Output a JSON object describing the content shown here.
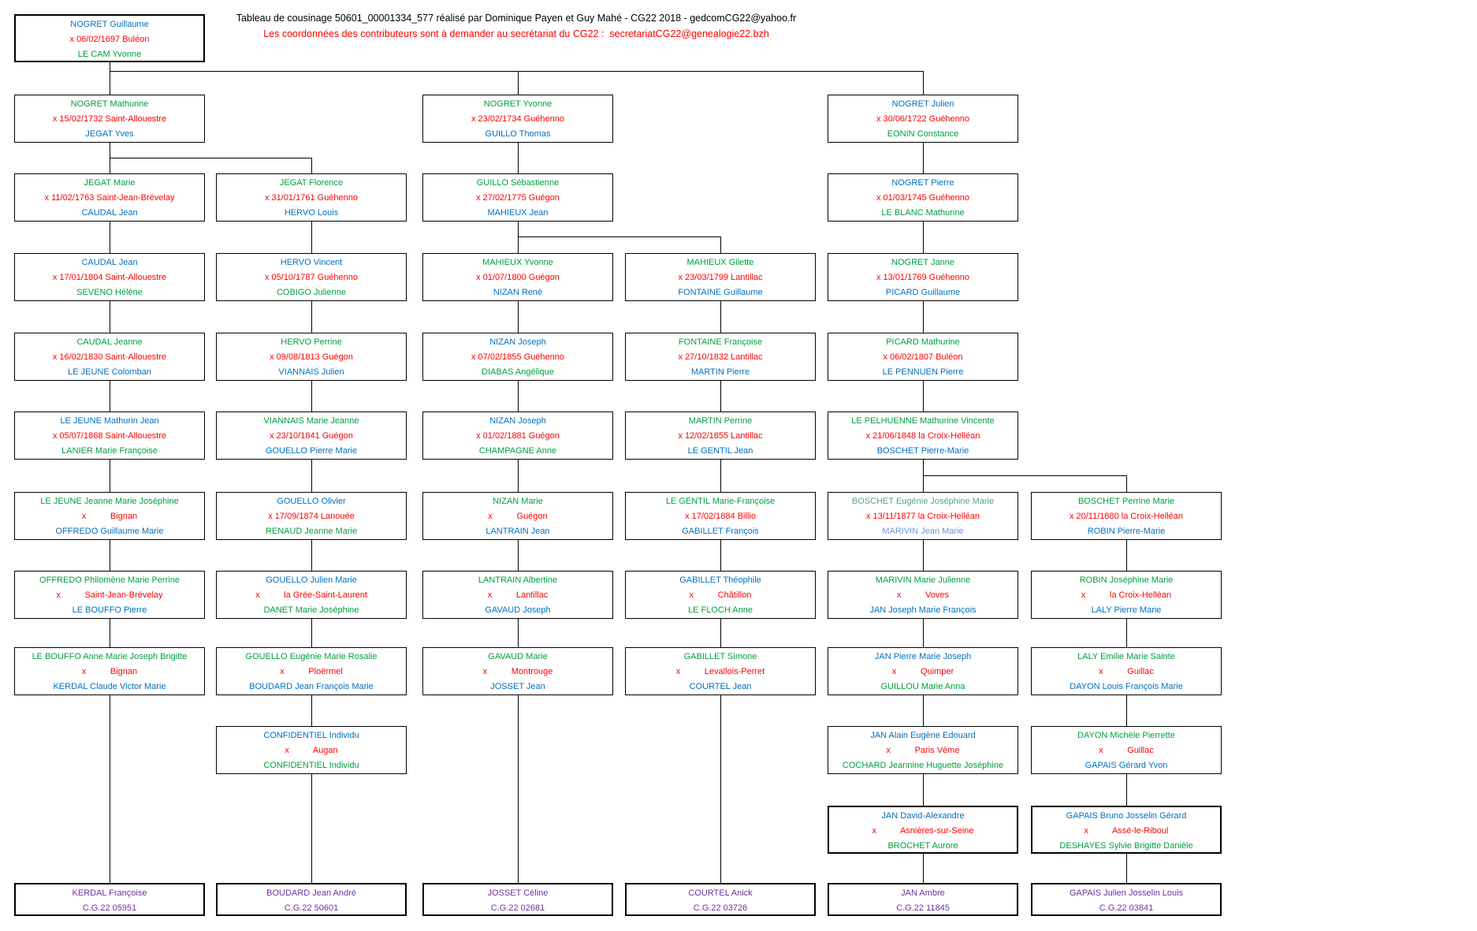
{
  "header": {
    "line1": "Tableau de cousinage 50601_00001334_577 réalisé par Dominique Payen et Guy Mahé - CG22 2018 - gedcomCG22@yahoo.fr",
    "line2": "Les coordonnées des contributeurs sont à demander au secrétariat du CG22 :  secretariatCG22@genealogie22.bzh"
  },
  "palette": {
    "blue": "#0070C0",
    "green": "#00A03C",
    "lightgreen": "#52A777",
    "lightblue": "#6E96DB",
    "red": "#FF0000",
    "purple": "#7030A0",
    "black": "#000000"
  },
  "boxes": [
    {
      "row": 1,
      "col": 1,
      "lines": [
        {
          "t": "NOGRET Guillaume",
          "c": "blue"
        },
        {
          "t": "x 06/02/1697 Buléon",
          "c": "red"
        },
        {
          "t": "LE CAM Yvonne",
          "c": "green"
        }
      ]
    },
    {
      "row": 2,
      "col": 1,
      "lines": [
        {
          "t": "NOGRET Mathurine",
          "c": "green"
        },
        {
          "t": "x 15/02/1732 Saint-Allouestre",
          "c": "red"
        },
        {
          "t": "JEGAT Yves",
          "c": "blue"
        }
      ]
    },
    {
      "row": 2,
      "col": 3,
      "lines": [
        {
          "t": "NOGRET Yvonne",
          "c": "green"
        },
        {
          "t": "x 23/02/1734 Guéhenno",
          "c": "red"
        },
        {
          "t": "GUILLO Thomas",
          "c": "blue"
        }
      ]
    },
    {
      "row": 2,
      "col": 5,
      "lines": [
        {
          "t": "NOGRET Julien",
          "c": "blue"
        },
        {
          "t": "x 30/06/1722 Guéhenno",
          "c": "red"
        },
        {
          "t": "EONIN Constance",
          "c": "green"
        }
      ]
    },
    {
      "row": 3,
      "col": 1,
      "lines": [
        {
          "t": "JEGAT Marie",
          "c": "green"
        },
        {
          "t": "x 11/02/1763 Saint-Jean-Brévelay",
          "c": "red"
        },
        {
          "t": "CAUDAL Jean",
          "c": "blue"
        }
      ]
    },
    {
      "row": 3,
      "col": 2,
      "lines": [
        {
          "t": "JEGAT Florence",
          "c": "green"
        },
        {
          "t": "x 31/01/1761 Guéhenno",
          "c": "red"
        },
        {
          "t": "HERVO Louis",
          "c": "blue"
        }
      ]
    },
    {
      "row": 3,
      "col": 3,
      "lines": [
        {
          "t": "GUILLO Sébastienne",
          "c": "green"
        },
        {
          "t": "x 27/02/1775 Guégon",
          "c": "red"
        },
        {
          "t": "MAHIEUX Jean",
          "c": "blue"
        }
      ]
    },
    {
      "row": 3,
      "col": 5,
      "lines": [
        {
          "t": "NOGRET Pierre",
          "c": "blue"
        },
        {
          "t": "x 01/03/1745 Guéhenno",
          "c": "red"
        },
        {
          "t": "LE BLANC Mathurine",
          "c": "green"
        }
      ]
    },
    {
      "row": 4,
      "col": 1,
      "lines": [
        {
          "t": "CAUDAL Jean",
          "c": "blue"
        },
        {
          "t": "x 17/01/1804 Saint-Allouestre",
          "c": "red"
        },
        {
          "t": "SEVENO Hélène",
          "c": "green"
        }
      ]
    },
    {
      "row": 4,
      "col": 2,
      "lines": [
        {
          "t": "HERVO Vincent",
          "c": "blue"
        },
        {
          "t": "x 05/10/1787 Guéhenno",
          "c": "red"
        },
        {
          "t": "COBIGO Julienne",
          "c": "green"
        }
      ]
    },
    {
      "row": 4,
      "col": 3,
      "lines": [
        {
          "t": "MAHIEUX Yvonne",
          "c": "green"
        },
        {
          "t": "x 01/07/1800 Guégon",
          "c": "red"
        },
        {
          "t": "NIZAN René",
          "c": "blue"
        }
      ]
    },
    {
      "row": 4,
      "col": 4,
      "lines": [
        {
          "t": "MAHIEUX Gilette",
          "c": "green"
        },
        {
          "t": "x 23/03/1799 Lantillac",
          "c": "red"
        },
        {
          "t": "FONTAINE Guillaume",
          "c": "blue"
        }
      ]
    },
    {
      "row": 4,
      "col": 5,
      "lines": [
        {
          "t": "NOGRET Janne",
          "c": "green"
        },
        {
          "t": "x 13/01/1769 Guéhenno",
          "c": "red"
        },
        {
          "t": "PICARD Guillaume",
          "c": "blue"
        }
      ]
    },
    {
      "row": 5,
      "col": 1,
      "lines": [
        {
          "t": "CAUDAL Jeanne",
          "c": "green"
        },
        {
          "t": "x 16/02/1830 Saint-Allouestre",
          "c": "red"
        },
        {
          "t": "LE JEUNE Colomban",
          "c": "blue"
        }
      ]
    },
    {
      "row": 5,
      "col": 2,
      "lines": [
        {
          "t": "HERVO Perrine",
          "c": "green"
        },
        {
          "t": "x 09/08/1813 Guégon",
          "c": "red"
        },
        {
          "t": "VIANNAIS Julien",
          "c": "blue"
        }
      ]
    },
    {
      "row": 5,
      "col": 3,
      "lines": [
        {
          "t": "NIZAN Joseph",
          "c": "blue"
        },
        {
          "t": "x 07/02/1855 Guéhenno",
          "c": "red"
        },
        {
          "t": "DIABAS Angélique",
          "c": "green"
        }
      ]
    },
    {
      "row": 5,
      "col": 4,
      "lines": [
        {
          "t": "FONTAINE Françoise",
          "c": "green"
        },
        {
          "t": "x 27/10/1832 Lantillac",
          "c": "red"
        },
        {
          "t": "MARTIN Pierre",
          "c": "blue"
        }
      ]
    },
    {
      "row": 5,
      "col": 5,
      "lines": [
        {
          "t": "PICARD Mathurine",
          "c": "green"
        },
        {
          "t": "x 06/02/1807 Buléon",
          "c": "red"
        },
        {
          "t": "LE PENNUEN Pierre",
          "c": "blue"
        }
      ]
    },
    {
      "row": 6,
      "col": 1,
      "lines": [
        {
          "t": "LE JEUNE Mathurin Jean",
          "c": "blue"
        },
        {
          "t": "x 05/07/1868 Saint-Allouestre",
          "c": "red"
        },
        {
          "t": "LANIER Marie Françoise",
          "c": "green"
        }
      ]
    },
    {
      "row": 6,
      "col": 2,
      "lines": [
        {
          "t": "VIANNAIS Marie Jeanne",
          "c": "green"
        },
        {
          "t": "x 23/10/1841 Guégon",
          "c": "red"
        },
        {
          "t": "GOUELLO Pierre Marie",
          "c": "blue"
        }
      ]
    },
    {
      "row": 6,
      "col": 3,
      "lines": [
        {
          "t": "NIZAN Joseph",
          "c": "blue"
        },
        {
          "t": "x 01/02/1881 Guégon",
          "c": "red"
        },
        {
          "t": "CHAMPAGNE Anne",
          "c": "green"
        }
      ]
    },
    {
      "row": 6,
      "col": 4,
      "lines": [
        {
          "t": "MARTIN Perrine",
          "c": "green"
        },
        {
          "t": "x 12/02/1855 Lantillac",
          "c": "red"
        },
        {
          "t": "LE GENTIL Jean",
          "c": "blue"
        }
      ]
    },
    {
      "row": 6,
      "col": 5,
      "lines": [
        {
          "t": "LE PELHUENNE Mathurine Vincente",
          "c": "green"
        },
        {
          "t": "x 21/06/1848 la Croix-Helléan",
          "c": "red"
        },
        {
          "t": "BOSCHET Pierre-Marie",
          "c": "blue"
        }
      ]
    },
    {
      "row": 7,
      "col": 1,
      "lines": [
        {
          "t": "LE JEUNE Jeanne Marie Joséphine",
          "c": "green"
        },
        {
          "t": "x          Bignan",
          "c": "red"
        },
        {
          "t": "OFFREDO Guillaume Marie",
          "c": "blue"
        }
      ]
    },
    {
      "row": 7,
      "col": 2,
      "lines": [
        {
          "t": "GOUELLO Olivier",
          "c": "blue"
        },
        {
          "t": "x 17/09/1874 Lanouée",
          "c": "red"
        },
        {
          "t": "RENAUD Jeanne Marie",
          "c": "green"
        }
      ]
    },
    {
      "row": 7,
      "col": 3,
      "lines": [
        {
          "t": "NIZAN Marie",
          "c": "green"
        },
        {
          "t": "x          Guégon",
          "c": "red"
        },
        {
          "t": "LANTRAIN Jean",
          "c": "blue"
        }
      ]
    },
    {
      "row": 7,
      "col": 4,
      "lines": [
        {
          "t": "LE GENTIL Marie-Françoise",
          "c": "green"
        },
        {
          "t": "x 17/02/1884 Billio",
          "c": "red"
        },
        {
          "t": "GABILLET François",
          "c": "blue"
        }
      ]
    },
    {
      "row": 7,
      "col": 5,
      "lines": [
        {
          "t": "BOSCHET Eugénie Joséphine Marie",
          "c": "lightgreen"
        },
        {
          "t": "x 13/11/1877 la Croix-Helléan",
          "c": "red"
        },
        {
          "t": "MARIVIN Jean Marie",
          "c": "lightblue"
        }
      ]
    },
    {
      "row": 7,
      "col": 6,
      "lines": [
        {
          "t": "BOSCHET Perrine Marie",
          "c": "green"
        },
        {
          "t": "x 20/11/1880 la Croix-Helléan",
          "c": "red"
        },
        {
          "t": "ROBIN Pierre-Marie",
          "c": "blue"
        }
      ]
    },
    {
      "row": 8,
      "col": 1,
      "lines": [
        {
          "t": "OFFREDO Philomène Marie Perrine",
          "c": "green"
        },
        {
          "t": "x          Saint-Jean-Brévelay",
          "c": "red"
        },
        {
          "t": "LE BOUFFO Pierre",
          "c": "blue"
        }
      ]
    },
    {
      "row": 8,
      "col": 2,
      "lines": [
        {
          "t": "GOUELLO Julien Marie",
          "c": "blue"
        },
        {
          "t": "x          la Grée-Saint-Laurent",
          "c": "red"
        },
        {
          "t": "DANET Marie Joséphine",
          "c": "green"
        }
      ]
    },
    {
      "row": 8,
      "col": 3,
      "lines": [
        {
          "t": "LANTRAIN Albertine",
          "c": "green"
        },
        {
          "t": "x          Lantillac",
          "c": "red"
        },
        {
          "t": "GAVAUD Joseph",
          "c": "blue"
        }
      ]
    },
    {
      "row": 8,
      "col": 4,
      "lines": [
        {
          "t": "GABILLET Théophile",
          "c": "blue"
        },
        {
          "t": "x          Châtillon",
          "c": "red"
        },
        {
          "t": "LE FLOCH Anne",
          "c": "green"
        }
      ]
    },
    {
      "row": 8,
      "col": 5,
      "lines": [
        {
          "t": "MARIVIN Marie Julienne",
          "c": "green"
        },
        {
          "t": "x          Voves",
          "c": "red"
        },
        {
          "t": "JAN Joseph Marie François",
          "c": "blue"
        }
      ]
    },
    {
      "row": 8,
      "col": 6,
      "lines": [
        {
          "t": "ROBIN Joséphine Marie",
          "c": "green"
        },
        {
          "t": "x          la Croix-Helléan",
          "c": "red"
        },
        {
          "t": "LALY Pierre Marie",
          "c": "blue"
        }
      ]
    },
    {
      "row": 9,
      "col": 1,
      "lines": [
        {
          "t": "LE BOUFFO Anne Marie Joseph Brigitte",
          "c": "green"
        },
        {
          "t": "x          Bignan",
          "c": "red"
        },
        {
          "t": "KERDAL Claude Victor Marie",
          "c": "blue"
        }
      ]
    },
    {
      "row": 9,
      "col": 2,
      "lines": [
        {
          "t": "GOUELLO Eugénie Marie Rosalie",
          "c": "green"
        },
        {
          "t": "x          Ploërmel",
          "c": "red"
        },
        {
          "t": "BOUDARD Jean François Marie",
          "c": "blue"
        }
      ]
    },
    {
      "row": 9,
      "col": 3,
      "lines": [
        {
          "t": "GAVAUD Marie",
          "c": "green"
        },
        {
          "t": "x          Montrouge",
          "c": "red"
        },
        {
          "t": "JOSSET Jean",
          "c": "blue"
        }
      ]
    },
    {
      "row": 9,
      "col": 4,
      "lines": [
        {
          "t": "GABILLET Simone",
          "c": "green"
        },
        {
          "t": "x          Levallois-Perret",
          "c": "red"
        },
        {
          "t": "COURTEL Jean",
          "c": "blue"
        }
      ]
    },
    {
      "row": 9,
      "col": 5,
      "lines": [
        {
          "t": "JAN Pierre Marie Joseph",
          "c": "blue"
        },
        {
          "t": "x          Quimper",
          "c": "red"
        },
        {
          "t": "GUILLOU Marie Anna",
          "c": "green"
        }
      ]
    },
    {
      "row": 9,
      "col": 6,
      "lines": [
        {
          "t": "LALY Emilie Marie Sainte",
          "c": "green"
        },
        {
          "t": "x          Guillac",
          "c": "red"
        },
        {
          "t": "DAYON Louis François Marie",
          "c": "blue"
        }
      ]
    },
    {
      "row": 10,
      "col": 2,
      "lines": [
        {
          "t": "CONFIDENTIEL Individu",
          "c": "blue"
        },
        {
          "t": "x          Augan",
          "c": "red"
        },
        {
          "t": "CONFIDENTIEL Individu",
          "c": "green"
        }
      ]
    },
    {
      "row": 10,
      "col": 5,
      "lines": [
        {
          "t": "JAN Alain Eugène Edouard",
          "c": "blue"
        },
        {
          "t": "x          Paris Vème",
          "c": "red"
        },
        {
          "t": "COCHARD Jeannine Huguette Joséphine",
          "c": "green"
        }
      ]
    },
    {
      "row": 10,
      "col": 6,
      "lines": [
        {
          "t": "DAYON Michèle Pierrette",
          "c": "green"
        },
        {
          "t": "x          Guillac",
          "c": "red"
        },
        {
          "t": "GAPAIS Gérard Yvon",
          "c": "blue"
        }
      ]
    },
    {
      "row": 11,
      "col": 5,
      "lines": [
        {
          "t": "JAN David-Alexandre",
          "c": "blue"
        },
        {
          "t": "x          Asnières-sur-Seine",
          "c": "red"
        },
        {
          "t": "BROCHET Aurore",
          "c": "green"
        }
      ]
    },
    {
      "row": 11,
      "col": 6,
      "lines": [
        {
          "t": "GAPAIS Bruno Josselin Gérard",
          "c": "blue"
        },
        {
          "t": "x          Assé-le-Riboul",
          "c": "red"
        },
        {
          "t": "DESHAYES Sylvie Brigitte Danièle",
          "c": "green"
        }
      ]
    },
    {
      "row": 12,
      "col": 1,
      "lines": [
        {
          "t": "KERDAL Françoise",
          "c": "purple"
        },
        {
          "t": "C.G.22 05951",
          "c": "purple"
        }
      ]
    },
    {
      "row": 12,
      "col": 2,
      "lines": [
        {
          "t": "BOUDARD Jean André",
          "c": "purple"
        },
        {
          "t": "C.G.22 50601",
          "c": "purple"
        }
      ]
    },
    {
      "row": 12,
      "col": 3,
      "lines": [
        {
          "t": "JOSSET Céline",
          "c": "purple"
        },
        {
          "t": "C.G.22 02681",
          "c": "purple"
        }
      ]
    },
    {
      "row": 12,
      "col": 4,
      "lines": [
        {
          "t": "COURTEL Anick",
          "c": "purple"
        },
        {
          "t": "C.G.22 03726",
          "c": "purple"
        }
      ]
    },
    {
      "row": 12,
      "col": 5,
      "lines": [
        {
          "t": "JAN Ambre",
          "c": "purple"
        },
        {
          "t": "C.G.22 11845",
          "c": "purple"
        }
      ]
    },
    {
      "row": 12,
      "col": 6,
      "lines": [
        {
          "t": "GAPAIS Julien Josselin Louis",
          "c": "purple"
        },
        {
          "t": "C.G.22 03841",
          "c": "purple"
        }
      ]
    }
  ],
  "edges": [
    {
      "from": 0,
      "to": [
        1,
        2,
        3
      ],
      "bus": 90
    },
    {
      "from": 1,
      "to": [
        4,
        5
      ],
      "bus": 200
    },
    {
      "from": 2,
      "to": [
        6
      ]
    },
    {
      "from": 3,
      "to": [
        7
      ]
    },
    {
      "from": 4,
      "to": [
        8
      ]
    },
    {
      "from": 5,
      "to": [
        9
      ]
    },
    {
      "from": 6,
      "to": [
        10,
        11
      ],
      "bus": 300
    },
    {
      "from": 7,
      "to": [
        12
      ]
    },
    {
      "from": 8,
      "to": [
        13
      ]
    },
    {
      "from": 9,
      "to": [
        14
      ]
    },
    {
      "from": 10,
      "to": [
        15
      ]
    },
    {
      "from": 11,
      "to": [
        16
      ]
    },
    {
      "from": 12,
      "to": [
        17
      ]
    },
    {
      "from": 13,
      "to": [
        18
      ]
    },
    {
      "from": 14,
      "to": [
        19
      ]
    },
    {
      "from": 15,
      "to": [
        20
      ]
    },
    {
      "from": 16,
      "to": [
        21
      ]
    },
    {
      "from": 17,
      "to": [
        22
      ]
    },
    {
      "from": 18,
      "to": [
        23
      ]
    },
    {
      "from": 19,
      "to": [
        24
      ]
    },
    {
      "from": 20,
      "to": [
        25
      ]
    },
    {
      "from": 21,
      "to": [
        26
      ]
    },
    {
      "from": 22,
      "to": [
        27,
        28
      ],
      "bus": 603
    },
    {
      "from": 23,
      "to": [
        29
      ]
    },
    {
      "from": 24,
      "to": [
        30
      ]
    },
    {
      "from": 25,
      "to": [
        31
      ]
    },
    {
      "from": 26,
      "to": [
        32
      ]
    },
    {
      "from": 27,
      "to": [
        33
      ]
    },
    {
      "from": 28,
      "to": [
        34
      ]
    },
    {
      "from": 29,
      "to": [
        35
      ]
    },
    {
      "from": 30,
      "to": [
        36
      ]
    },
    {
      "from": 31,
      "to": [
        37
      ]
    },
    {
      "from": 32,
      "to": [
        38
      ]
    },
    {
      "from": 33,
      "to": [
        39
      ]
    },
    {
      "from": 34,
      "to": [
        40
      ]
    },
    {
      "from": 36,
      "to": [
        41
      ]
    },
    {
      "from": 39,
      "to": [
        42
      ]
    },
    {
      "from": 40,
      "to": [
        43
      ]
    },
    {
      "from": 42,
      "to": [
        44
      ]
    },
    {
      "from": 43,
      "to": [
        45
      ]
    },
    {
      "from": 35,
      "to": [
        46
      ]
    },
    {
      "from": 41,
      "to": [
        47
      ]
    },
    {
      "from": 37,
      "to": [
        48
      ]
    },
    {
      "from": 38,
      "to": [
        49
      ]
    },
    {
      "from": 44,
      "to": [
        50
      ]
    },
    {
      "from": 45,
      "to": [
        51
      ]
    }
  ]
}
